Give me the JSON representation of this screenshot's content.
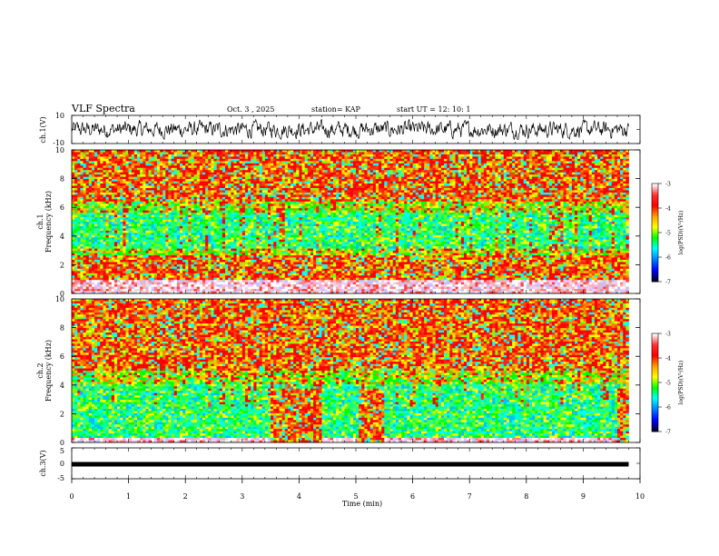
{
  "header": {
    "title": "VLF Spectra",
    "date": "Oct. 3 , 2025",
    "station": "station= KAP",
    "start_ut": "start UT =  12: 10: 1"
  },
  "colorbar": {
    "label": "log(PSD)(V²/Hz)",
    "ticks": [
      "-3",
      "-4",
      "-5",
      "-6",
      "-7"
    ],
    "colors": [
      "#ffffff",
      "#ff3030",
      "#ff0000",
      "#ffa000",
      "#ffff00",
      "#00ff00",
      "#00ffff",
      "#0080ff",
      "#0000ff",
      "#000030"
    ]
  },
  "chart_data": [
    {
      "type": "line",
      "panel": "waveform",
      "ylabel": "ch.1(V)",
      "ylim": [
        -10,
        10
      ],
      "yticks": [
        "10",
        "-10"
      ],
      "xlim": [
        0,
        10
      ],
      "color": "#000000"
    },
    {
      "type": "heatmap",
      "panel": "spectrogram",
      "ylabel": "ch.1",
      "ylabel2": "Frequency (kHz)",
      "ylim": [
        0,
        10
      ],
      "yticks": [
        "10",
        "8",
        "6",
        "4",
        "2",
        "0"
      ],
      "xlim": [
        0,
        10
      ],
      "data_end_min": 9.8,
      "bands": [
        {
          "from": 0,
          "to": 0.3,
          "level": "mixed"
        },
        {
          "from": 0.3,
          "to": 1.0,
          "level": "mixed"
        },
        {
          "from": 1.0,
          "to": 2.0,
          "level": "high"
        },
        {
          "from": 2.0,
          "to": 2.6,
          "level": "high"
        },
        {
          "from": 2.6,
          "to": 3.2,
          "level": "mid"
        },
        {
          "from": 3.2,
          "to": 4.0,
          "level": "low"
        },
        {
          "from": 4.0,
          "to": 5.6,
          "level": "low"
        },
        {
          "from": 5.6,
          "to": 6.4,
          "level": "mid"
        },
        {
          "from": 6.4,
          "to": 10.0,
          "level": "high"
        }
      ],
      "bursts": []
    },
    {
      "type": "heatmap",
      "panel": "spectrogram",
      "ylabel": "ch.2",
      "ylabel2": "Frequency (kHz)",
      "ylim": [
        0,
        10
      ],
      "yticks": [
        "10",
        "8",
        "6",
        "4",
        "2",
        "0"
      ],
      "xlim": [
        0,
        10
      ],
      "data_end_min": 9.8,
      "bands": [
        {
          "from": 0,
          "to": 0.3,
          "level": "mixed"
        },
        {
          "from": 0.3,
          "to": 2.0,
          "level": "low"
        },
        {
          "from": 2.0,
          "to": 4.0,
          "level": "low"
        },
        {
          "from": 4.0,
          "to": 5.0,
          "level": "mid"
        },
        {
          "from": 5.0,
          "to": 10.0,
          "level": "high"
        }
      ],
      "bursts": [
        {
          "x0": 3.5,
          "x1": 4.4,
          "f1": 3.8
        },
        {
          "x0": 5.05,
          "x1": 5.5,
          "f1": 3.8
        },
        {
          "x0": 9.6,
          "x1": 9.8,
          "f1": 3.8
        }
      ]
    },
    {
      "type": "line",
      "panel": "waveform",
      "ylabel": "ch.3(V)",
      "ylim": [
        -5,
        5
      ],
      "yticks": [
        "5",
        "0",
        "-5"
      ],
      "xlim": [
        0,
        10
      ],
      "level": -0.3,
      "data_end_min": 9.8
    }
  ],
  "xaxis": {
    "label": "Time (min)",
    "ticks": [
      "0",
      "1",
      "2",
      "3",
      "4",
      "5",
      "6",
      "7",
      "8",
      "9",
      "10"
    ]
  }
}
